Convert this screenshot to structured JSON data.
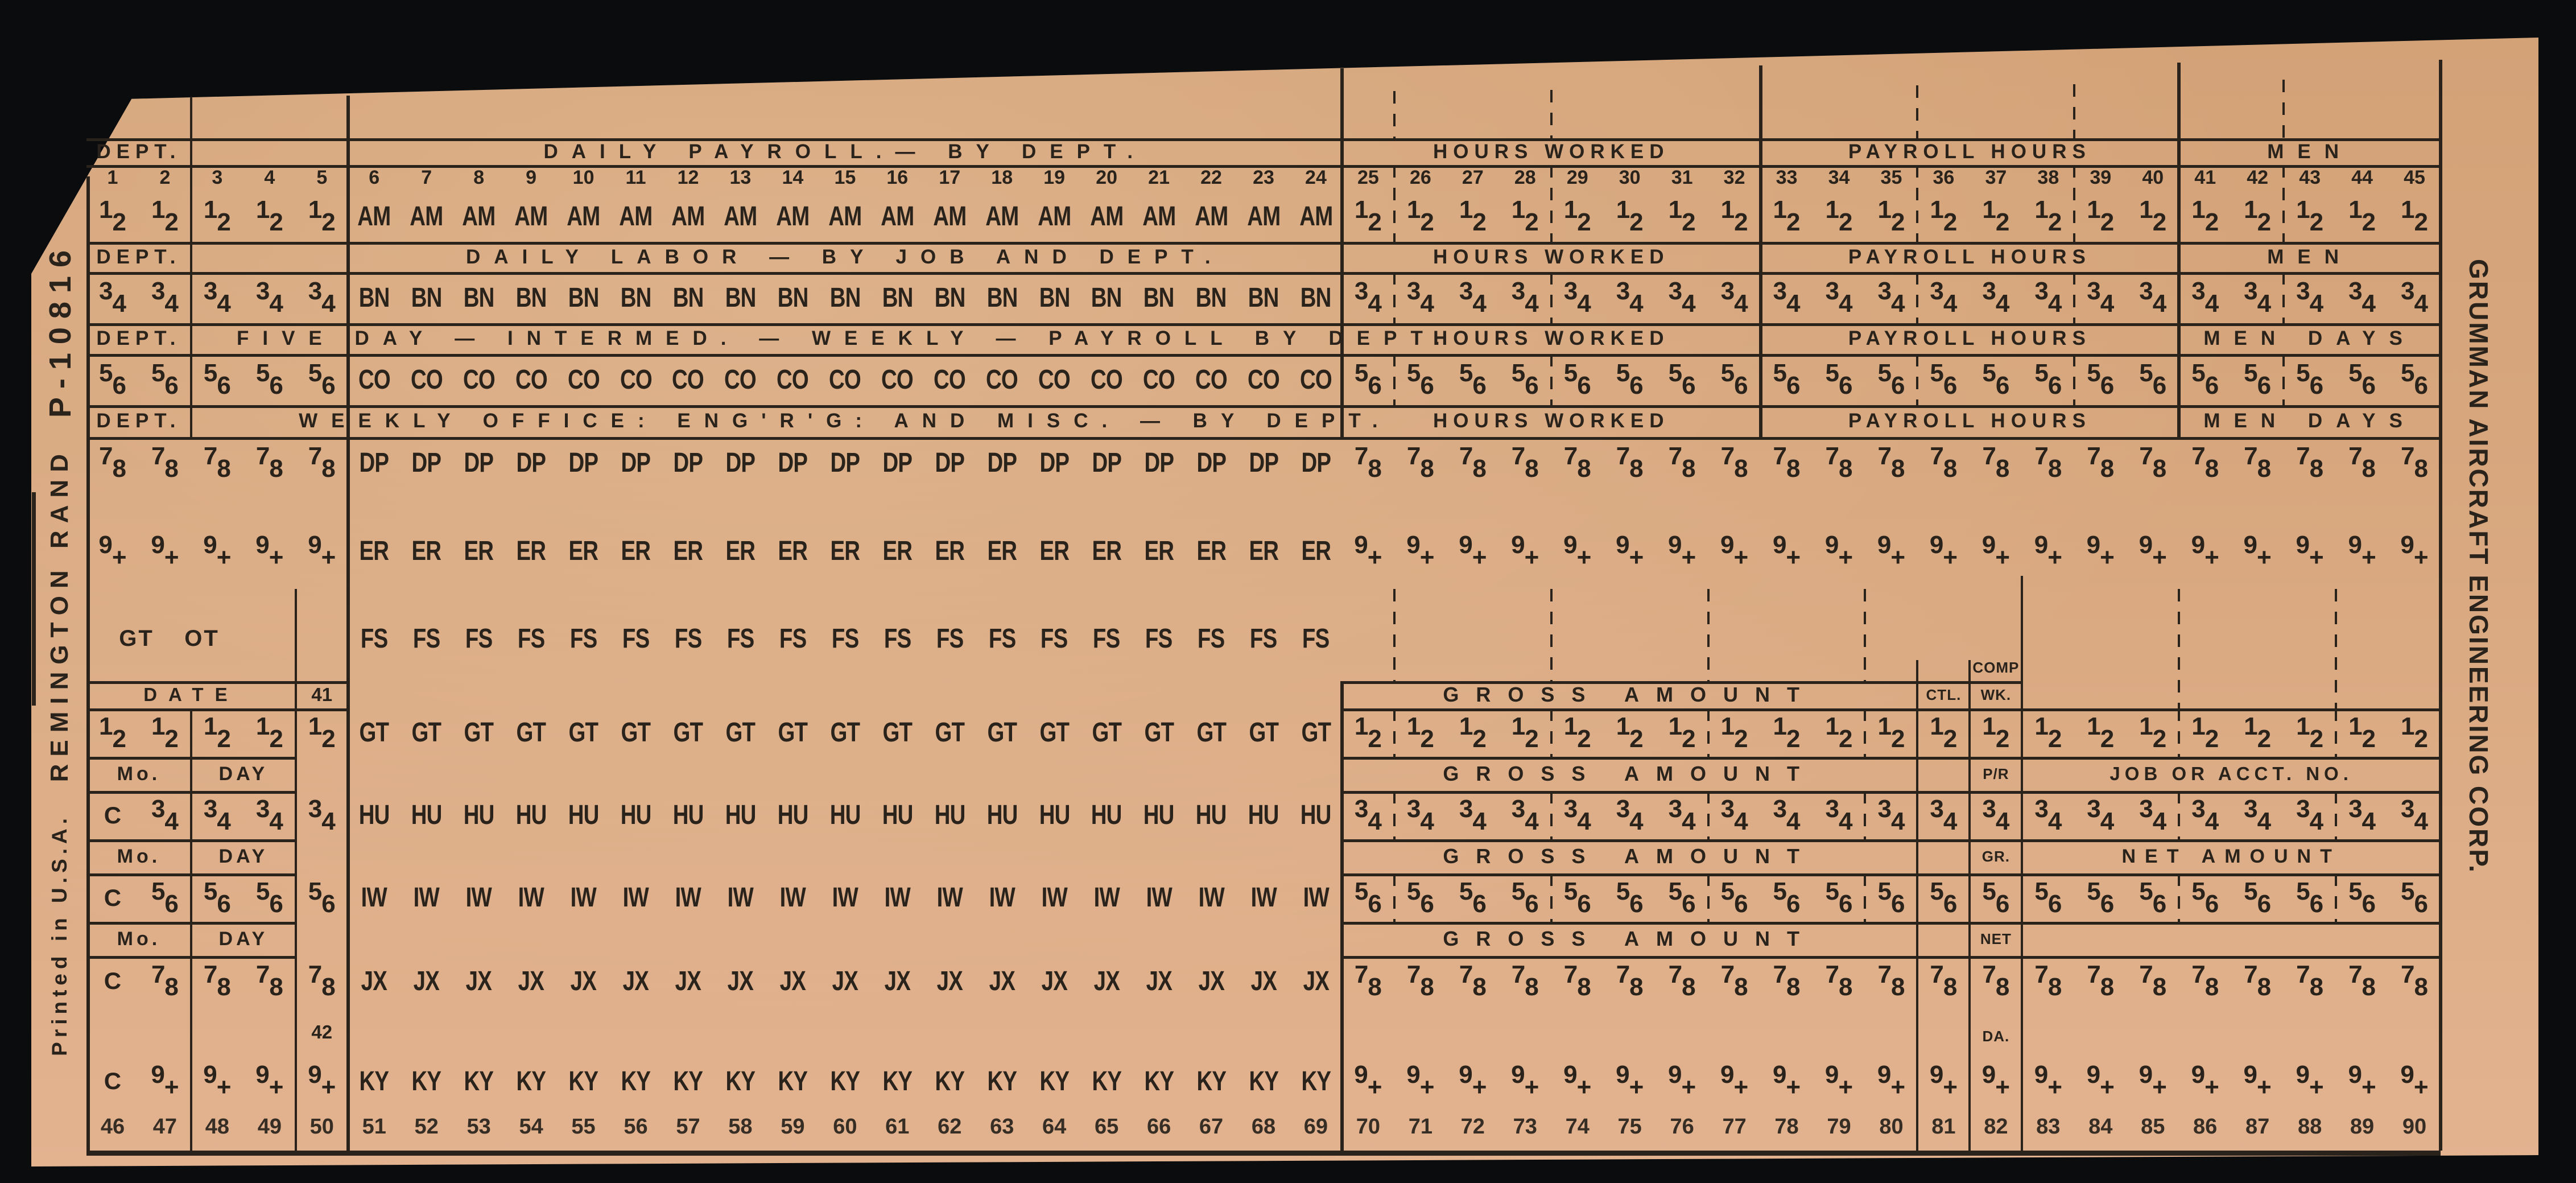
{
  "margins": {
    "printed": "Printed in U.S.A.",
    "brand": "REMINGTON RAND",
    "part_number": "P-10816",
    "company": "GRUMMAN AIRCRAFT ENGINEERING CORP."
  },
  "upper": {
    "column_numbers": [
      "1",
      "2",
      "3",
      "4",
      "5",
      "6",
      "7",
      "8",
      "9",
      "10",
      "11",
      "12",
      "13",
      "14",
      "15",
      "16",
      "17",
      "18",
      "19",
      "20",
      "21",
      "22",
      "23",
      "24",
      "25",
      "26",
      "27",
      "28",
      "29",
      "30",
      "31",
      "32",
      "33",
      "34",
      "35",
      "36",
      "37",
      "38",
      "39",
      "40",
      "41",
      "42",
      "43",
      "44",
      "45"
    ],
    "header_bands": [
      {
        "dept": "DEPT.",
        "main": "DAILY PAYROLL.— BY DEPT.",
        "hours": "HOURS WORKED",
        "payroll": "PAYROLL HOURS",
        "men": "MEN"
      },
      {
        "dept": "DEPT.",
        "main": "DAILY LABOR — BY JOB AND DEPT.",
        "hours": "HOURS WORKED",
        "payroll": "PAYROLL HOURS",
        "men": "MEN"
      },
      {
        "dept": "DEPT.",
        "main": "FIVE DAY — INTERMED. — WEEKLY — PAYROLL BY DEPT.",
        "hours": "HOURS WORKED",
        "payroll": "PAYROLL HOURS",
        "men": "MEN DAYS"
      },
      {
        "dept": "DEPT.",
        "main": "WEEKLY OFFICE: ENG'R'G: AND MISC. — BY DEPT.",
        "hours": "HOURS WORKED",
        "payroll": "PAYROLL HOURS",
        "men": "MEN DAYS"
      }
    ],
    "digit_rows": [
      {
        "hi": "1",
        "lo": "2",
        "letter": "AM"
      },
      {
        "hi": "3",
        "lo": "4",
        "letter": "BN"
      },
      {
        "hi": "5",
        "lo": "6",
        "letter": "CO"
      },
      {
        "hi": "7",
        "lo": "8",
        "letter": "DP"
      },
      {
        "hi": "9",
        "lo": "+",
        "letter": "ER"
      }
    ]
  },
  "lower": {
    "gt": "GT",
    "ot": "OT",
    "fs": "FS",
    "date": "DATE",
    "col41": "41",
    "col42": "42",
    "mo": "Mo.",
    "day": "DAY",
    "c": "C",
    "gross": "GROSS AMOUNT",
    "ctl": "CTL.",
    "comp": "COMP",
    "wk": "WK.",
    "pr": "P/R",
    "gr": "GR.",
    "net": "NET",
    "da": "DA.",
    "job": "JOB OR ACCT. NO.",
    "net_amount": "NET AMOUNT",
    "digit_rows": [
      {
        "hi": "1",
        "lo": "2",
        "letter": "GT",
        "c_col": false
      },
      {
        "hi": "3",
        "lo": "4",
        "letter": "HU",
        "c_col": true
      },
      {
        "hi": "5",
        "lo": "6",
        "letter": "IW",
        "c_col": true
      },
      {
        "hi": "7",
        "lo": "8",
        "letter": "JX",
        "c_col": true
      },
      {
        "hi": "9",
        "lo": "+",
        "letter": "KY",
        "c_col": true
      }
    ],
    "footer_numbers": [
      "46",
      "47",
      "48",
      "49",
      "50",
      "51",
      "52",
      "53",
      "54",
      "55",
      "56",
      "57",
      "58",
      "59",
      "60",
      "61",
      "62",
      "63",
      "64",
      "65",
      "66",
      "67",
      "68",
      "69",
      "70",
      "71",
      "72",
      "73",
      "74",
      "75",
      "76",
      "77",
      "78",
      "79",
      "80",
      "81",
      "82",
      "83",
      "84",
      "85",
      "86",
      "87",
      "88",
      "89",
      "90"
    ]
  }
}
